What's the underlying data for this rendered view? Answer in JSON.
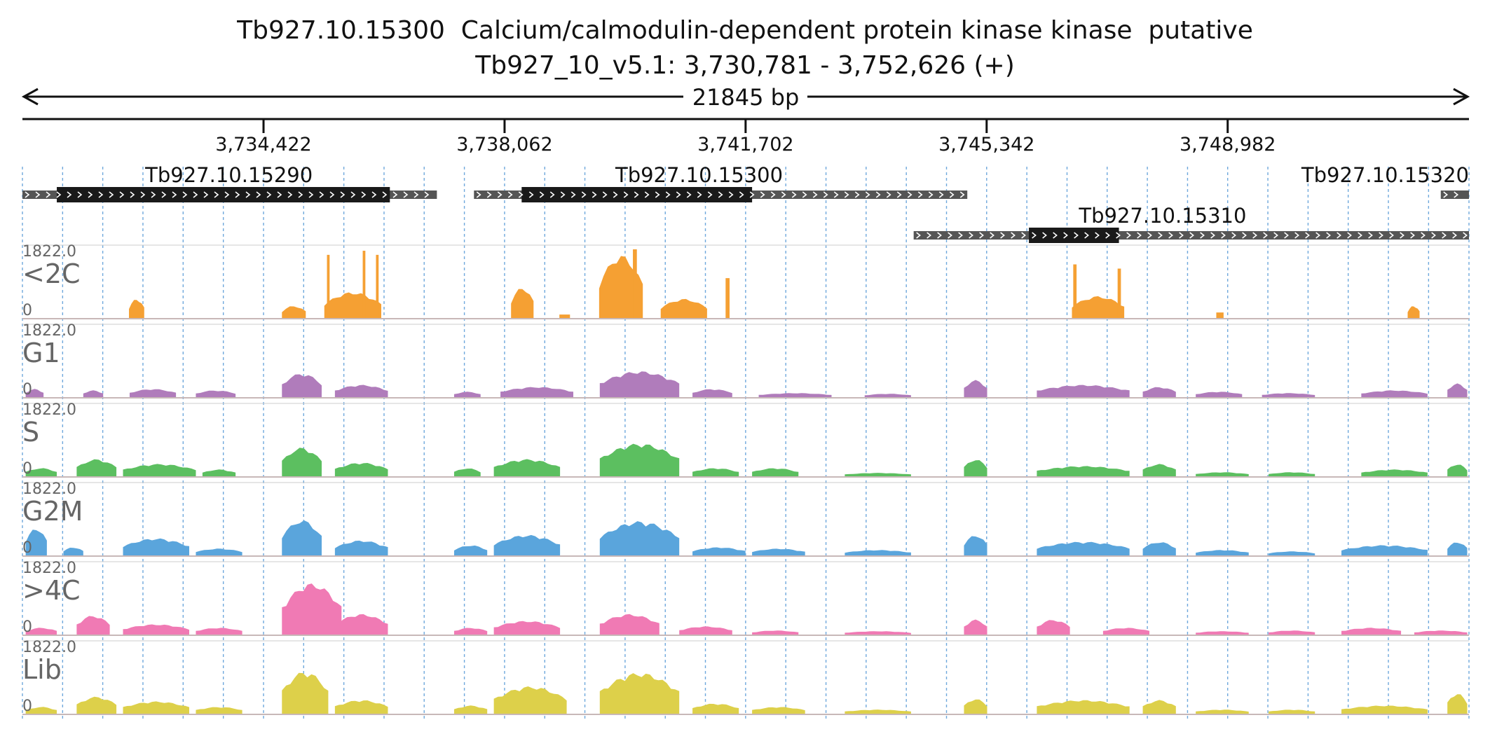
{
  "header": {
    "gene_title": "Tb927.10.15300  Calcium/calmodulin-dependent protein kinase kinase  putative",
    "locus": "Tb927_10_v5.1: 3,730,781 - 3,752,626 (+)",
    "span_label": "21845 bp"
  },
  "colors": {
    "axis": "#111111",
    "grid": "#6fa8dc",
    "gene_utr": "#555555",
    "gene_cds": "#1a1a1a",
    "track_label": "#666666",
    "separator": "#c8b8b8"
  },
  "chart_data": {
    "type": "area",
    "title": "Tb927.10.15300  Calcium/calmodulin-dependent protein kinase kinase  putative",
    "region": {
      "chromosome": "Tb927_10_v5.1",
      "start": 3730781,
      "end": 3752626,
      "strand": "+"
    },
    "x_ticks": [
      {
        "pos": 3734422,
        "label": "3,734,422"
      },
      {
        "pos": 3738062,
        "label": "3,738,062"
      },
      {
        "pos": 3741702,
        "label": "3,741,702"
      },
      {
        "pos": 3745342,
        "label": "3,745,342"
      },
      {
        "pos": 3748982,
        "label": "3,748,982"
      }
    ],
    "grid_positions": [
      3730781,
      3731388,
      3731994,
      3732601,
      3733208,
      3733815,
      3734422,
      3735028,
      3735635,
      3736242,
      3736848,
      3737455,
      3738062,
      3738669,
      3739275,
      3739882,
      3740489,
      3741095,
      3741702,
      3742309,
      3742916,
      3743522,
      3744129,
      3744736,
      3745342,
      3745949,
      3746556,
      3747162,
      3747769,
      3748376,
      3748982,
      3749589,
      3750196,
      3750802,
      3751409,
      3752016,
      3752626
    ],
    "genes": [
      {
        "id": "Tb927.10.15290",
        "start": 3730781,
        "end": 3737040,
        "cds_start": 3731300,
        "cds_end": 3736330,
        "row": 0,
        "label_pos": 3733900
      },
      {
        "id": "Tb927.10.15300",
        "start": 3737600,
        "end": 3745050,
        "cds_start": 3738320,
        "cds_end": 3741800,
        "row": 0,
        "label_pos": 3741000
      },
      {
        "id": "Tb927.10.15320",
        "start": 3752200,
        "end": 3752626,
        "cds_start": 3752626,
        "cds_end": 3752626,
        "row": 0,
        "label_pos": 3751600
      },
      {
        "id": "Tb927.10.15310",
        "start": 3744240,
        "end": 3752626,
        "cds_start": 3745980,
        "cds_end": 3747340,
        "row": 1,
        "label_pos": 3748000
      }
    ],
    "tracks": [
      {
        "name": "<2C",
        "color": "#f5a033",
        "ymax": "1822.0",
        "ymin": "0",
        "peaks": [
          [
            3732390,
            3732620,
            0.28,
            "r"
          ],
          [
            3734700,
            3735060,
            0.18,
            "r"
          ],
          [
            3735340,
            3736200,
            0.38,
            "r"
          ],
          [
            3735380,
            3735420,
            0.92,
            "s"
          ],
          [
            3735920,
            3735960,
            0.98,
            "s"
          ],
          [
            3736120,
            3736160,
            0.92,
            "s"
          ],
          [
            3738160,
            3738500,
            0.45,
            "r"
          ],
          [
            3738890,
            3739050,
            0.05,
            "f"
          ],
          [
            3739490,
            3740150,
            0.92,
            "r"
          ],
          [
            3740000,
            3740060,
            1.0,
            "s"
          ],
          [
            3740420,
            3741120,
            0.28,
            "r"
          ],
          [
            3741400,
            3741460,
            0.58,
            "s"
          ],
          [
            3746630,
            3747420,
            0.32,
            "r"
          ],
          [
            3746650,
            3746700,
            0.78,
            "s"
          ],
          [
            3747320,
            3747370,
            0.72,
            "s"
          ],
          [
            3748810,
            3748920,
            0.08,
            "f"
          ],
          [
            3751700,
            3751880,
            0.18,
            "r"
          ]
        ]
      },
      {
        "name": "G1",
        "color": "#b07cbb",
        "ymax": "1822.0",
        "ymin": "0",
        "peaks": [
          [
            3730830,
            3731100,
            0.12,
            "r"
          ],
          [
            3731700,
            3732000,
            0.1,
            "r"
          ],
          [
            3732400,
            3733100,
            0.12,
            "r"
          ],
          [
            3733400,
            3734000,
            0.1,
            "r"
          ],
          [
            3734700,
            3735300,
            0.35,
            "r"
          ],
          [
            3735500,
            3736300,
            0.18,
            "r"
          ],
          [
            3737300,
            3737700,
            0.08,
            "r"
          ],
          [
            3738000,
            3739100,
            0.15,
            "r"
          ],
          [
            3739500,
            3740700,
            0.38,
            "r"
          ],
          [
            3740900,
            3741500,
            0.12,
            "r"
          ],
          [
            3741900,
            3743000,
            0.06,
            "r"
          ],
          [
            3743500,
            3744200,
            0.05,
            "r"
          ],
          [
            3745000,
            3745350,
            0.25,
            "r"
          ],
          [
            3746100,
            3747500,
            0.18,
            "r"
          ],
          [
            3747700,
            3748200,
            0.15,
            "r"
          ],
          [
            3748500,
            3749200,
            0.08,
            "r"
          ],
          [
            3749500,
            3750300,
            0.06,
            "r"
          ],
          [
            3751000,
            3752000,
            0.1,
            "r"
          ],
          [
            3752300,
            3752600,
            0.2,
            "r"
          ]
        ]
      },
      {
        "name": "S",
        "color": "#5cbf60",
        "ymax": "1822.0",
        "ymin": "0",
        "peaks": [
          [
            3730830,
            3731300,
            0.12,
            "r"
          ],
          [
            3731600,
            3732200,
            0.25,
            "r"
          ],
          [
            3732300,
            3733400,
            0.18,
            "r"
          ],
          [
            3733500,
            3734000,
            0.1,
            "r"
          ],
          [
            3734700,
            3735300,
            0.42,
            "r"
          ],
          [
            3735500,
            3736300,
            0.2,
            "r"
          ],
          [
            3737300,
            3737700,
            0.12,
            "r"
          ],
          [
            3737900,
            3738900,
            0.25,
            "r"
          ],
          [
            3739500,
            3740700,
            0.48,
            "r"
          ],
          [
            3740900,
            3741600,
            0.12,
            "r"
          ],
          [
            3741800,
            3742500,
            0.12,
            "r"
          ],
          [
            3743200,
            3744200,
            0.05,
            "r"
          ],
          [
            3745000,
            3745350,
            0.25,
            "r"
          ],
          [
            3746100,
            3747500,
            0.15,
            "r"
          ],
          [
            3747700,
            3748200,
            0.18,
            "r"
          ],
          [
            3748500,
            3749300,
            0.06,
            "r"
          ],
          [
            3749600,
            3750300,
            0.06,
            "r"
          ],
          [
            3751000,
            3752000,
            0.1,
            "r"
          ],
          [
            3752300,
            3752600,
            0.18,
            "r"
          ]
        ]
      },
      {
        "name": "G2M",
        "color": "#5aa5dc",
        "ymax": "1822.0",
        "ymin": "0",
        "peaks": [
          [
            3730830,
            3731150,
            0.4,
            "r"
          ],
          [
            3731400,
            3731700,
            0.12,
            "r"
          ],
          [
            3732300,
            3733300,
            0.25,
            "r"
          ],
          [
            3733400,
            3734100,
            0.1,
            "r"
          ],
          [
            3734700,
            3735300,
            0.52,
            "r"
          ],
          [
            3735500,
            3736300,
            0.22,
            "r"
          ],
          [
            3737300,
            3737800,
            0.15,
            "r"
          ],
          [
            3737900,
            3738900,
            0.3,
            "r"
          ],
          [
            3739500,
            3740700,
            0.5,
            "r"
          ],
          [
            3740900,
            3741700,
            0.12,
            "r"
          ],
          [
            3741800,
            3742600,
            0.1,
            "r"
          ],
          [
            3743200,
            3744200,
            0.08,
            "r"
          ],
          [
            3745000,
            3745350,
            0.3,
            "r"
          ],
          [
            3746100,
            3747500,
            0.2,
            "r"
          ],
          [
            3747700,
            3748200,
            0.2,
            "r"
          ],
          [
            3748500,
            3749300,
            0.08,
            "r"
          ],
          [
            3749600,
            3750300,
            0.06,
            "r"
          ],
          [
            3750700,
            3752000,
            0.15,
            "r"
          ],
          [
            3752300,
            3752600,
            0.2,
            "r"
          ]
        ]
      },
      {
        "name": ">4C",
        "color": "#f07ab4",
        "ymax": "1822.0",
        "ymin": "0",
        "peaks": [
          [
            3730830,
            3731300,
            0.1,
            "r"
          ],
          [
            3731600,
            3732100,
            0.28,
            "r"
          ],
          [
            3732300,
            3733300,
            0.15,
            "r"
          ],
          [
            3733400,
            3734100,
            0.1,
            "r"
          ],
          [
            3734700,
            3735600,
            0.75,
            "r"
          ],
          [
            3735500,
            3736300,
            0.3,
            "r"
          ],
          [
            3737300,
            3737800,
            0.1,
            "r"
          ],
          [
            3737900,
            3738900,
            0.2,
            "r"
          ],
          [
            3739500,
            3740400,
            0.3,
            "r"
          ],
          [
            3740700,
            3741500,
            0.12,
            "r"
          ],
          [
            3741800,
            3742500,
            0.06,
            "r"
          ],
          [
            3743200,
            3744200,
            0.05,
            "r"
          ],
          [
            3745000,
            3745350,
            0.22,
            "r"
          ],
          [
            3746100,
            3746600,
            0.22,
            "r"
          ],
          [
            3747100,
            3747800,
            0.1,
            "r"
          ],
          [
            3748500,
            3749300,
            0.05,
            "r"
          ],
          [
            3749600,
            3750300,
            0.06,
            "r"
          ],
          [
            3750700,
            3751600,
            0.1,
            "r"
          ],
          [
            3751800,
            3752600,
            0.06,
            "r"
          ]
        ]
      },
      {
        "name": "Lib",
        "color": "#ddd04a",
        "ymax": "1822.0",
        "ymin": "0",
        "peaks": [
          [
            3730830,
            3731300,
            0.1,
            "r"
          ],
          [
            3731600,
            3732200,
            0.25,
            "r"
          ],
          [
            3732300,
            3733300,
            0.18,
            "r"
          ],
          [
            3733400,
            3734100,
            0.1,
            "r"
          ],
          [
            3734700,
            3735400,
            0.62,
            "r"
          ],
          [
            3735500,
            3736300,
            0.2,
            "r"
          ],
          [
            3737300,
            3737800,
            0.12,
            "r"
          ],
          [
            3737900,
            3739000,
            0.4,
            "r"
          ],
          [
            3739500,
            3740700,
            0.6,
            "r"
          ],
          [
            3740900,
            3741600,
            0.15,
            "r"
          ],
          [
            3741800,
            3742600,
            0.1,
            "r"
          ],
          [
            3743200,
            3744200,
            0.06,
            "r"
          ],
          [
            3745000,
            3745350,
            0.22,
            "r"
          ],
          [
            3746100,
            3747500,
            0.2,
            "r"
          ],
          [
            3747700,
            3748200,
            0.2,
            "r"
          ],
          [
            3748500,
            3749300,
            0.06,
            "r"
          ],
          [
            3749600,
            3750300,
            0.06,
            "r"
          ],
          [
            3750700,
            3752000,
            0.12,
            "r"
          ],
          [
            3752300,
            3752600,
            0.3,
            "r"
          ]
        ]
      }
    ]
  }
}
